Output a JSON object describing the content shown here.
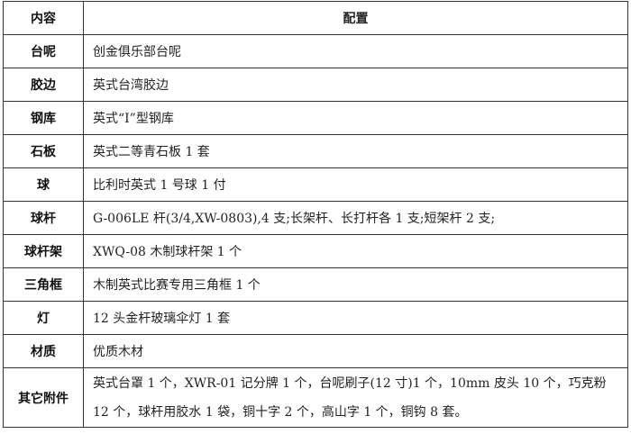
{
  "table": {
    "header": {
      "key": "内容",
      "value": "配置"
    },
    "rows": [
      {
        "key": "台呢",
        "value": "创金俱乐部台呢"
      },
      {
        "key": "胶边",
        "value": "英式台湾胶边"
      },
      {
        "key": "钢库",
        "value": "英式“I”型钢库"
      },
      {
        "key": "石板",
        "value": "英式二等青石板 1 套"
      },
      {
        "key": "球",
        "value": "比利时英式 1 号球 1 付"
      },
      {
        "key": "球杆",
        "value": "G-006LE 杆(3/4,XW-0803),4 支;长架杆、长打杆各 1 支;短架杆 2 支;"
      },
      {
        "key": "球杆架",
        "value": "XWQ-08 木制球杆架 1 个"
      },
      {
        "key": "三角框",
        "value": "木制英式比赛专用三角框 1 个"
      },
      {
        "key": "灯",
        "value": "12 头金杆玻璃伞灯 1 套"
      },
      {
        "key": "材质",
        "value": "优质木材"
      },
      {
        "key": "其它附件",
        "value": "英式台罩 1 个，XWR-01 记分牌 1 个，台呢刷子(12 寸)1 个，10mm 皮头 10 个，巧克粉 12 个，球杆用胶水 1 袋，铜十字 2 个，高山字 1 个，铜钩 8 套。"
      }
    ]
  }
}
